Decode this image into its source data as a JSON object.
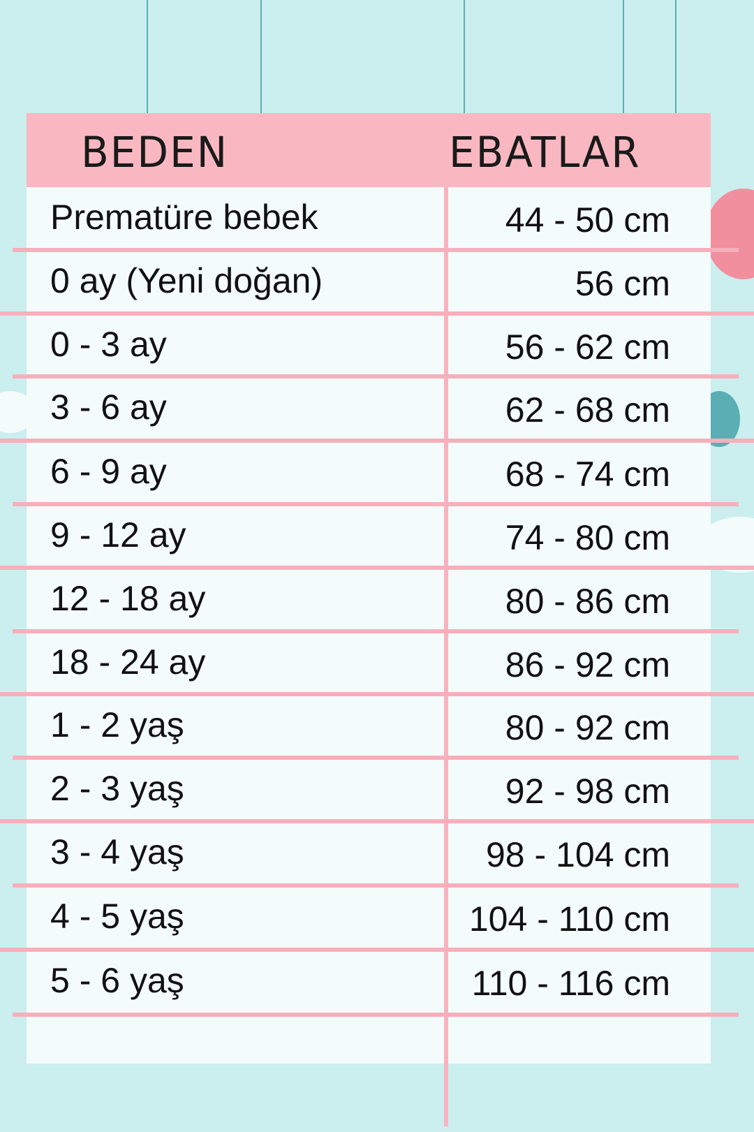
{
  "colors": {
    "background": "#cbeeee",
    "header": "#f9b8c1",
    "lines": "#f7afbb",
    "table": "#f4fbfb"
  },
  "header": {
    "size": "BEDEN",
    "dimensions": "EBATLAR"
  },
  "rows": [
    {
      "size": "Prematüre bebek",
      "dim": "44 - 50 cm"
    },
    {
      "size": "0 ay (Yeni doğan)",
      "dim": "56 cm"
    },
    {
      "size": "0 - 3 ay",
      "dim": "56 - 62 cm"
    },
    {
      "size": "3 - 6 ay",
      "dim": "62 - 68 cm"
    },
    {
      "size": "6 - 9 ay",
      "dim": "68 - 74 cm"
    },
    {
      "size": "9 - 12 ay",
      "dim": "74 - 80 cm"
    },
    {
      "size": "12 - 18 ay",
      "dim": "80 - 86 cm"
    },
    {
      "size": "18 - 24 ay",
      "dim": "86 - 92 cm"
    },
    {
      "size": "1 - 2 yaş",
      "dim": "80 - 92 cm"
    },
    {
      "size": "2 - 3 yaş",
      "dim": "92 - 98 cm"
    },
    {
      "size": "3 - 4 yaş",
      "dim": "98 - 104 cm"
    },
    {
      "size": "4 - 5 yaş",
      "dim": "104 - 110 cm"
    },
    {
      "size": "5 - 6 yaş",
      "dim": "110 - 116 cm"
    }
  ]
}
